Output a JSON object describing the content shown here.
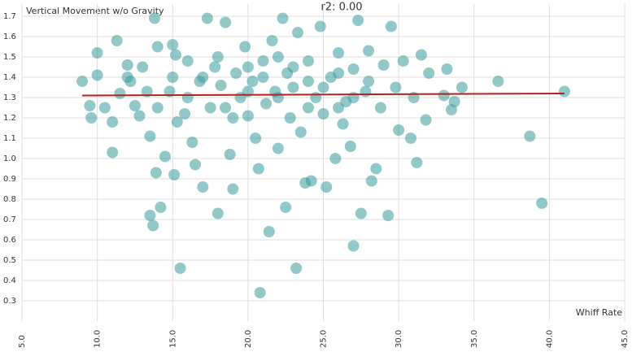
{
  "chart_data": {
    "type": "scatter",
    "title": "r2: 0.00",
    "y_label": "Vertical Movement w/o Gravity",
    "x_label": "Whiff Rate",
    "color": "#3a9a9a",
    "grid": true,
    "xlim": [
      5,
      45
    ],
    "ylim": [
      0.2,
      1.76
    ],
    "xticks": [
      {
        "value": 5,
        "label": "5.0"
      },
      {
        "value": 10,
        "label": "10.0"
      },
      {
        "value": 15,
        "label": "15.0"
      },
      {
        "value": 20,
        "label": "20.0"
      },
      {
        "value": 25,
        "label": "25.0"
      },
      {
        "value": 30,
        "label": "30.0"
      },
      {
        "value": 35,
        "label": "35.0"
      },
      {
        "value": 40,
        "label": "40.0"
      },
      {
        "value": 45,
        "label": "45.0"
      }
    ],
    "yticks": [
      0.3,
      0.4,
      0.5,
      0.6,
      0.7,
      0.8,
      0.9,
      {
        "value": 1,
        "label": "1.0"
      },
      1.1,
      1.2,
      1.3,
      1.4,
      1.5,
      1.6,
      1.7
    ],
    "x": [
      9.0,
      9.5,
      9.6,
      10.0,
      10.0,
      10.5,
      11.0,
      11.0,
      11.3,
      11.5,
      12.0,
      12.2,
      12.5,
      12.8,
      13.0,
      13.3,
      13.5,
      13.5,
      13.7,
      13.8,
      13.9,
      14.0,
      14.2,
      14.5,
      14.8,
      15.0,
      15.1,
      15.2,
      15.3,
      15.5,
      15.8,
      16.0,
      16.3,
      16.5,
      16.8,
      17.0,
      17.3,
      17.5,
      17.8,
      18.0,
      18.2,
      18.5,
      18.8,
      19.0,
      19.2,
      19.5,
      19.8,
      20.0,
      20.3,
      20.5,
      20.7,
      20.8,
      21.0,
      21.2,
      21.4,
      21.6,
      21.8,
      22.0,
      22.3,
      22.5,
      22.6,
      22.8,
      23.0,
      23.2,
      23.3,
      23.5,
      23.8,
      24.0,
      24.2,
      24.5,
      24.8,
      25.0,
      25.2,
      25.5,
      25.8,
      26.0,
      26.3,
      26.5,
      26.8,
      27.0,
      27.0,
      27.3,
      27.5,
      27.8,
      28.0,
      28.2,
      28.5,
      28.8,
      29.0,
      29.3,
      29.5,
      29.8,
      30.0,
      30.3,
      30.8,
      31.0,
      31.2,
      31.5,
      31.8,
      32.0,
      33.0,
      33.2,
      33.5,
      33.7,
      34.2,
      36.6,
      38.7,
      39.5,
      41.0,
      16.0,
      17.0,
      18.0,
      19.0,
      20.0,
      21.0,
      22.0,
      23.0,
      24.0,
      25.0,
      26.0,
      27.0,
      28.0,
      18.5,
      20.0,
      22.0,
      24.0,
      26.0,
      15.0,
      14.0,
      12.0
    ],
    "y": [
      1.38,
      1.26,
      1.2,
      1.52,
      1.41,
      1.25,
      1.18,
      1.03,
      1.58,
      1.32,
      1.46,
      1.38,
      1.26,
      1.21,
      1.45,
      1.33,
      1.11,
      0.72,
      0.67,
      1.69,
      0.93,
      1.55,
      0.76,
      1.01,
      1.33,
      1.56,
      0.92,
      1.51,
      1.18,
      0.46,
      1.22,
      1.48,
      1.08,
      0.97,
      1.38,
      0.86,
      1.69,
      1.25,
      1.45,
      0.73,
      1.36,
      1.67,
      1.02,
      0.85,
      1.42,
      1.3,
      1.55,
      1.21,
      1.38,
      1.1,
      0.95,
      0.34,
      1.48,
      1.27,
      0.64,
      1.58,
      1.33,
      1.05,
      1.69,
      0.76,
      1.42,
      1.2,
      1.35,
      0.46,
      1.62,
      1.13,
      0.88,
      1.48,
      0.89,
      1.3,
      1.65,
      1.22,
      0.86,
      1.4,
      1.0,
      1.52,
      1.17,
      1.28,
      1.06,
      1.44,
      0.57,
      1.68,
      0.73,
      1.33,
      1.53,
      0.89,
      0.95,
      1.25,
      1.46,
      0.72,
      1.65,
      1.35,
      1.14,
      1.48,
      1.1,
      1.3,
      0.98,
      1.51,
      1.19,
      1.42,
      1.31,
      1.44,
      1.24,
      1.28,
      1.35,
      1.38,
      1.11,
      0.78,
      1.33,
      1.3,
      1.4,
      1.5,
      1.2,
      1.33,
      1.4,
      1.3,
      1.45,
      1.25,
      1.35,
      1.42,
      1.3,
      1.38,
      1.25,
      1.45,
      1.5,
      1.38,
      1.25,
      1.4,
      1.25,
      1.4
    ],
    "trendline": {
      "color": "#b22222",
      "x": [
        9.0,
        41.0
      ],
      "y": [
        1.31,
        1.32
      ]
    }
  }
}
